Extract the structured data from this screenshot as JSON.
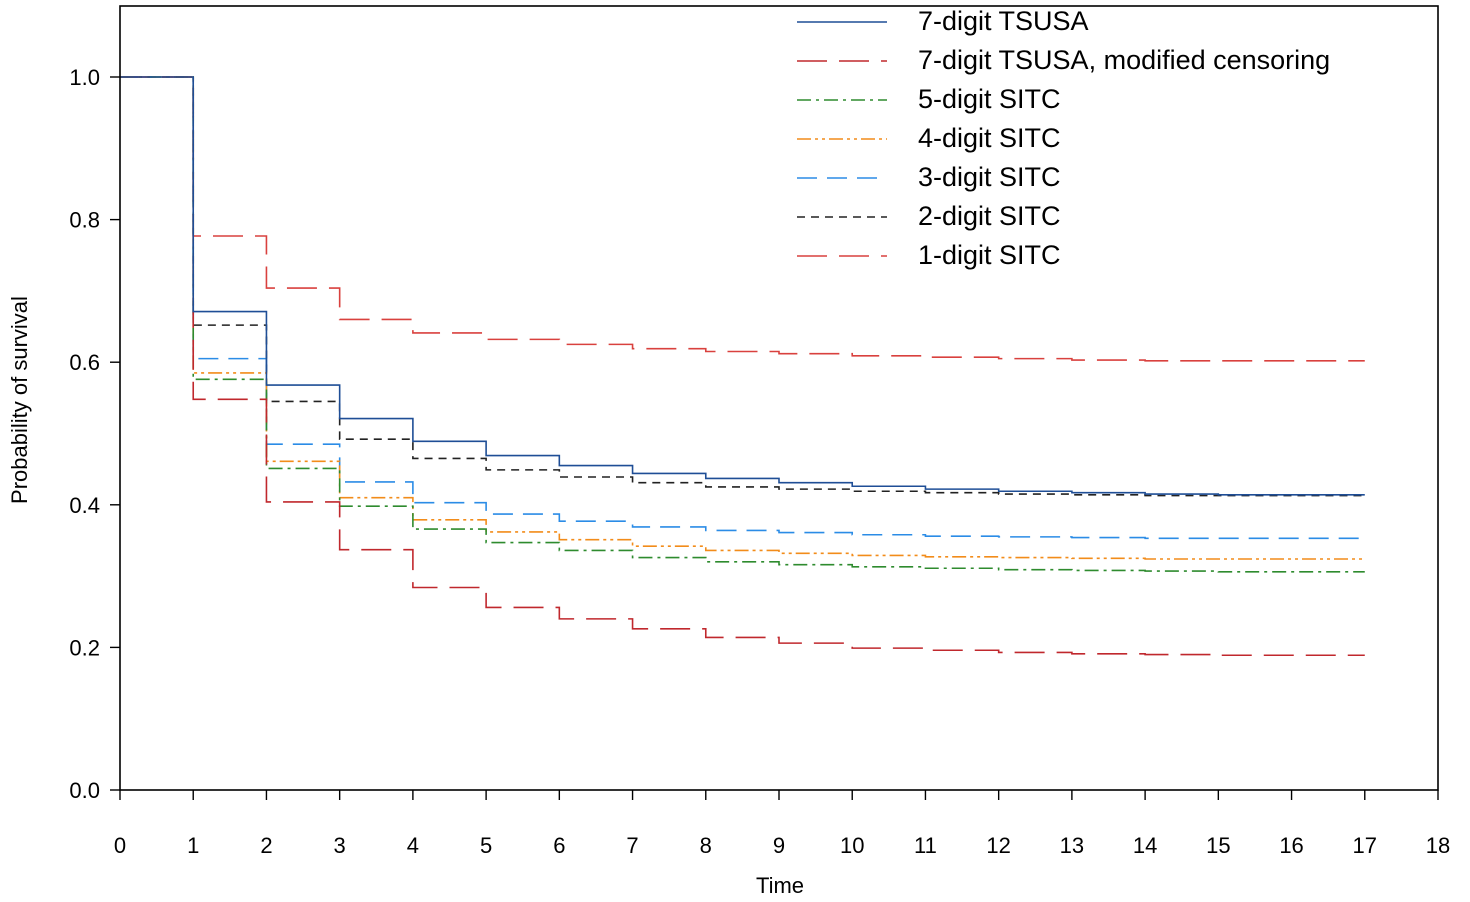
{
  "chart_data": {
    "type": "line",
    "step": true,
    "xlabel": "Time",
    "ylabel": "Probability of survival",
    "xlim": [
      0,
      18
    ],
    "ylim": [
      0,
      1.0
    ],
    "xticks": [
      "0",
      "1",
      "2",
      "3",
      "4",
      "5",
      "6",
      "7",
      "8",
      "9",
      "10",
      "11",
      "12",
      "13",
      "14",
      "15",
      "16",
      "17",
      "18"
    ],
    "yticks": [
      "0.0",
      "0.2",
      "0.4",
      "0.6",
      "0.8",
      "1.0"
    ],
    "grid": false,
    "legend_position": "top-right",
    "x": [
      0,
      1,
      2,
      3,
      4,
      5,
      6,
      7,
      8,
      9,
      10,
      11,
      12,
      13,
      14,
      15,
      16,
      17
    ],
    "series": [
      {
        "name": "7-digit TSUSA",
        "color": "#1f4e96",
        "dash": "solid",
        "values": [
          1.0,
          0.671,
          0.568,
          0.521,
          0.489,
          0.469,
          0.455,
          0.444,
          0.437,
          0.431,
          0.426,
          0.422,
          0.419,
          0.417,
          0.415,
          0.414,
          0.414,
          0.414
        ]
      },
      {
        "name": "7-digit TSUSA, modified censoring",
        "color": "#c0282d",
        "dash": "long",
        "values": [
          1.0,
          0.548,
          0.404,
          0.337,
          0.284,
          0.256,
          0.24,
          0.226,
          0.214,
          0.206,
          0.199,
          0.196,
          0.193,
          0.191,
          0.19,
          0.189,
          0.189,
          0.189
        ]
      },
      {
        "name": "5-digit SITC",
        "color": "#2e8b2e",
        "dash": "dashdot",
        "values": [
          1.0,
          0.576,
          0.451,
          0.398,
          0.366,
          0.347,
          0.336,
          0.326,
          0.32,
          0.316,
          0.313,
          0.311,
          0.309,
          0.308,
          0.307,
          0.306,
          0.306,
          0.306
        ]
      },
      {
        "name": "4-digit SITC",
        "color": "#f28c1a",
        "dash": "dashdotdot",
        "values": [
          1.0,
          0.585,
          0.461,
          0.41,
          0.379,
          0.362,
          0.351,
          0.342,
          0.336,
          0.332,
          0.329,
          0.327,
          0.326,
          0.325,
          0.324,
          0.324,
          0.324,
          0.324
        ]
      },
      {
        "name": "3-digit SITC",
        "color": "#2b8ce6",
        "dash": "medium",
        "values": [
          1.0,
          0.605,
          0.485,
          0.432,
          0.403,
          0.387,
          0.377,
          0.369,
          0.364,
          0.361,
          0.358,
          0.356,
          0.355,
          0.354,
          0.353,
          0.353,
          0.353,
          0.353
        ]
      },
      {
        "name": "2-digit SITC",
        "color": "#222222",
        "dash": "short",
        "values": [
          1.0,
          0.652,
          0.545,
          0.492,
          0.465,
          0.449,
          0.439,
          0.431,
          0.425,
          0.422,
          0.419,
          0.417,
          0.415,
          0.414,
          0.413,
          0.413,
          0.413,
          0.413
        ]
      },
      {
        "name": "1-digit SITC",
        "color": "#d9413e",
        "dash": "long",
        "values": [
          1.0,
          0.777,
          0.704,
          0.66,
          0.641,
          0.632,
          0.625,
          0.619,
          0.615,
          0.612,
          0.609,
          0.607,
          0.605,
          0.603,
          0.602,
          0.602,
          0.602,
          0.602
        ]
      }
    ]
  }
}
